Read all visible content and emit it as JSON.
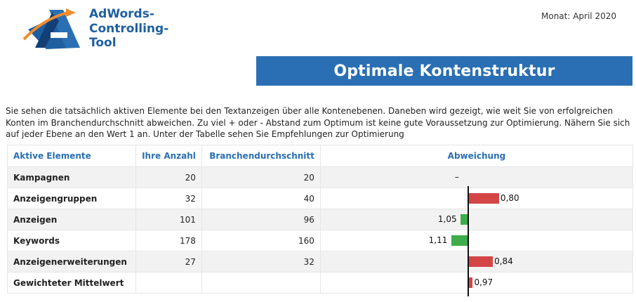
{
  "logo": {
    "lines": [
      "AdWords-",
      "Controlling-",
      "Tool"
    ]
  },
  "header": {
    "month": "Monat: April 2020",
    "title": "Optimale Kontenstruktur"
  },
  "intro": "Sie sehen die tatsächlich aktiven Elemente bei den Textanzeigen über alle Kontenebenen. Daneben wird gezeigt, wie weit Sie von erfolgreichen Konten im Branchendurchschnitt abweichen. Zu viel + oder - Abstand zum Optimum ist keine gute Voraussetzung zur Optimierung. Nähern Sie sich auf jeder Ebene an den Wert 1 an. Unter der Tabelle sehen Sie Empfehlungen zur Optimierung",
  "table": {
    "headers": [
      "Aktive Elemente",
      "Ihre Anzahl",
      "Branchendurchschnitt",
      "Abweichung"
    ],
    "rows": [
      {
        "name": "Kampagnen",
        "count": "20",
        "avg": "20",
        "deviation": "–"
      },
      {
        "name": "Anzeigengruppen",
        "count": "32",
        "avg": "40",
        "deviation": "0,80"
      },
      {
        "name": "Anzeigen",
        "count": "101",
        "avg": "96",
        "deviation": "1,05"
      },
      {
        "name": "Keywords",
        "count": "178",
        "avg": "160",
        "deviation": "1,11"
      },
      {
        "name": "Anzeigenerweiterungen",
        "count": "27",
        "avg": "32",
        "deviation": "0,84"
      },
      {
        "name": "Gewichteter Mittelwert",
        "count": "",
        "avg": "",
        "deviation": "0,97"
      }
    ]
  },
  "chart_data": {
    "type": "bar",
    "categories": [
      "Anzeigengruppen",
      "Anzeigen",
      "Keywords",
      "Anzeigenerweiterungen",
      "Gewichteter Mittelwert"
    ],
    "values": [
      0.8,
      1.05,
      1.11,
      0.84,
      0.97
    ],
    "xlabel": "",
    "ylabel": "",
    "colors": {
      "above_one": "#3cad4a",
      "below_one": "#d44646"
    }
  }
}
